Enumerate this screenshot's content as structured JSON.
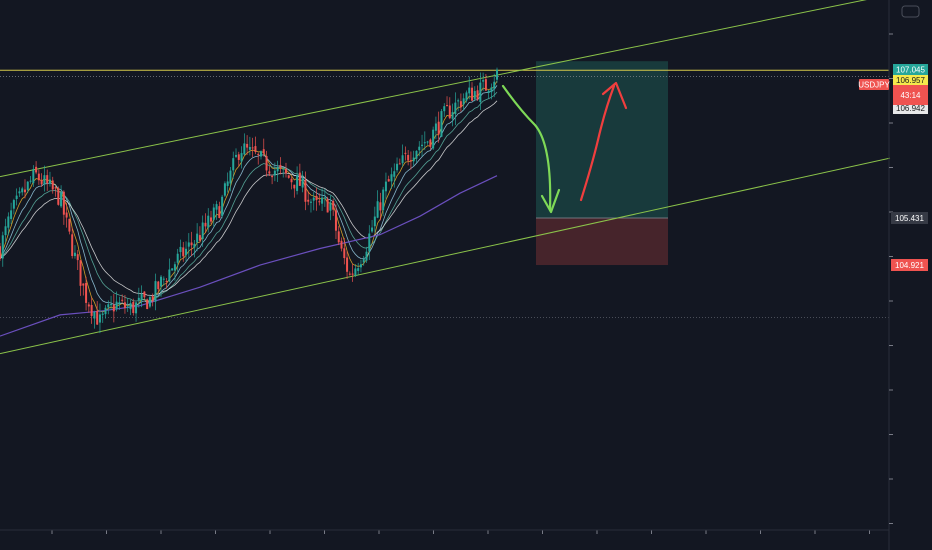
{
  "chart_data": {
    "type": "candlestick",
    "symbol": "USDJPY",
    "countdown": "43:14",
    "price_labels": {
      "top": "107.045",
      "current": "106.957",
      "behind": "106.942",
      "entry": "105.431",
      "stop": "104.921"
    },
    "price_levels": {
      "horizontal_line": 107.045,
      "dotted_line": 106.957,
      "entry": 105.431,
      "stop": 104.921,
      "target": 107.045,
      "lower_dotted": 104.35
    },
    "yrange": [
      101.8,
      107.8
    ],
    "channel": {
      "upper": [
        [
          0,
          105.88
        ],
        [
          880,
          107.83
        ]
      ],
      "lower": [
        [
          0,
          103.96
        ],
        [
          890,
          106.08
        ]
      ]
    },
    "candles": {
      "count": 180,
      "path": [
        [
          0,
          105.1
        ],
        [
          12,
          105.5
        ],
        [
          35,
          105.9
        ],
        [
          60,
          105.65
        ],
        [
          70,
          105.2
        ],
        [
          85,
          104.6
        ],
        [
          100,
          104.3
        ],
        [
          115,
          104.5
        ],
        [
          130,
          104.45
        ],
        [
          150,
          104.55
        ],
        [
          175,
          104.95
        ],
        [
          200,
          105.25
        ],
        [
          220,
          105.55
        ],
        [
          240,
          106.2
        ],
        [
          255,
          106.1
        ],
        [
          275,
          105.95
        ],
        [
          300,
          105.8
        ],
        [
          315,
          105.55
        ],
        [
          330,
          105.6
        ],
        [
          340,
          105.1
        ],
        [
          350,
          104.8
        ],
        [
          365,
          105.1
        ],
        [
          385,
          105.75
        ],
        [
          410,
          106.15
        ],
        [
          430,
          106.3
        ],
        [
          445,
          106.55
        ],
        [
          465,
          106.75
        ],
        [
          485,
          106.85
        ],
        [
          497,
          107.0
        ]
      ],
      "bull_color": "#26a69a",
      "bear_color": "#ef5350"
    },
    "moving_average_long": [
      [
        0,
        104.15
      ],
      [
        60,
        104.38
      ],
      [
        100,
        104.42
      ],
      [
        140,
        104.48
      ],
      [
        200,
        104.68
      ],
      [
        260,
        104.92
      ],
      [
        320,
        105.1
      ],
      [
        380,
        105.25
      ],
      [
        420,
        105.45
      ],
      [
        460,
        105.7
      ],
      [
        497,
        105.89
      ]
    ],
    "position_box": {
      "type": "long",
      "x_start": 536,
      "x_end": 668
    },
    "annotations": {
      "down_arrow_color": "#7ed957",
      "up_arrow_color": "#f03e3e"
    },
    "colors": {
      "background": "#131722",
      "channel": "#8bc34a",
      "horizontal_line": "#d4c84a",
      "ma_long": "#6a4fbd",
      "profit_zone": "#183a3c",
      "loss_zone": "#46242b",
      "label_green": "#26a69a",
      "label_yellow": "#f5e94c",
      "label_red": "#ef5350",
      "label_entry": "#363a45"
    }
  }
}
